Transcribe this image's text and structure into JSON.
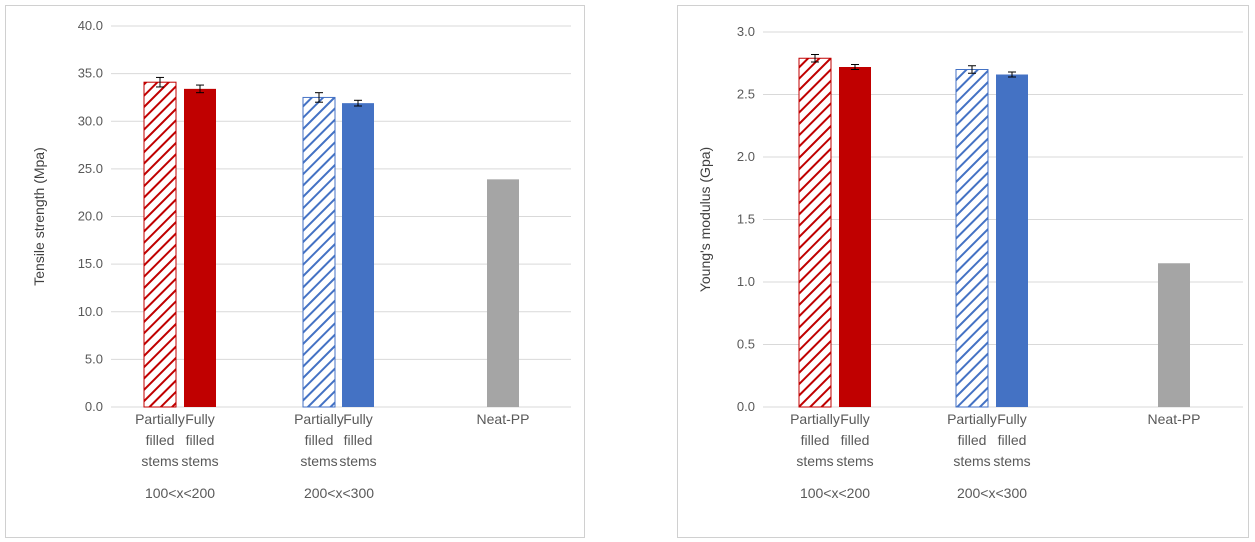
{
  "chart_data": [
    {
      "type": "bar",
      "title": "",
      "ylabel": "Tensile strength (Mpa)",
      "ylim": [
        0,
        40
      ],
      "yticks": [
        "0.0",
        "5.0",
        "10.0",
        "15.0",
        "20.0",
        "25.0",
        "30.0",
        "35.0",
        "40.0"
      ],
      "grid": true,
      "groups": [
        {
          "label": "100<x<200",
          "categories": [
            "Partially filled stems",
            "Fully filled stems"
          ]
        },
        {
          "label": "200<x<300",
          "categories": [
            "Partially filled stems",
            "Fully filled stems"
          ]
        },
        {
          "label": "",
          "categories": [
            "Neat-PP"
          ]
        }
      ],
      "bars": [
        {
          "category": "Partially filled stems",
          "group": "100<x<200",
          "value": 34.1,
          "error": 0.5,
          "color": "#c00000",
          "pattern": "hatched"
        },
        {
          "category": "Fully filled stems",
          "group": "100<x<200",
          "value": 33.4,
          "error": 0.4,
          "color": "#c00000",
          "pattern": "solid"
        },
        {
          "category": "Partially filled stems",
          "group": "200<x<300",
          "value": 32.5,
          "error": 0.5,
          "color": "#4472c4",
          "pattern": "hatched"
        },
        {
          "category": "Fully filled stems",
          "group": "200<x<300",
          "value": 31.9,
          "error": 0.3,
          "color": "#4472c4",
          "pattern": "solid"
        },
        {
          "category": "Neat-PP",
          "group": "",
          "value": 23.9,
          "error": 0,
          "color": "#a5a5a5",
          "pattern": "solid"
        }
      ]
    },
    {
      "type": "bar",
      "title": "",
      "ylabel": "Young's modulus (Gpa)",
      "ylim": [
        0,
        3
      ],
      "yticks": [
        "0.0",
        "0.5",
        "1.0",
        "1.5",
        "2.0",
        "2.5",
        "3.0"
      ],
      "grid": true,
      "groups": [
        {
          "label": "100<x<200",
          "categories": [
            "Partially filled stems",
            "Fully filled stems"
          ]
        },
        {
          "label": "200<x<300",
          "categories": [
            "Partially filled stems",
            "Fully filled stems"
          ]
        },
        {
          "label": "",
          "categories": [
            "Neat-PP"
          ]
        }
      ],
      "bars": [
        {
          "category": "Partially filled stems",
          "group": "100<x<200",
          "value": 2.79,
          "error": 0.03,
          "color": "#c00000",
          "pattern": "hatched"
        },
        {
          "category": "Fully filled stems",
          "group": "100<x<200",
          "value": 2.72,
          "error": 0.02,
          "color": "#c00000",
          "pattern": "solid"
        },
        {
          "category": "Partially filled stems",
          "group": "200<x<300",
          "value": 2.7,
          "error": 0.03,
          "color": "#4472c4",
          "pattern": "hatched"
        },
        {
          "category": "Fully filled stems",
          "group": "200<x<300",
          "value": 2.66,
          "error": 0.02,
          "color": "#4472c4",
          "pattern": "solid"
        },
        {
          "category": "Neat-PP",
          "group": "",
          "value": 1.15,
          "error": 0,
          "color": "#a5a5a5",
          "pattern": "solid"
        }
      ]
    }
  ]
}
